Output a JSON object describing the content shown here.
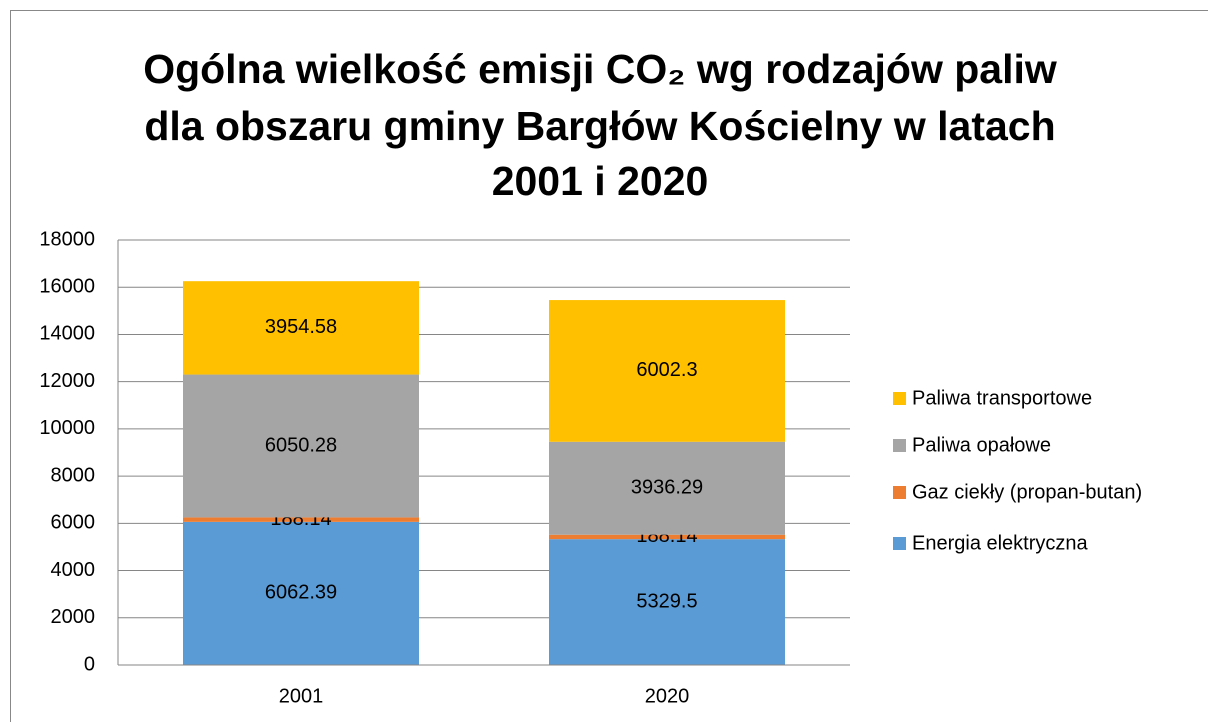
{
  "chart_data": {
    "type": "stacked_bar",
    "title": [
      "Ogólna wielkość emisji CO₂ wg rodzajów paliw",
      "dla obszaru gminy Bargłów Kościelny w latach",
      "2001 i 2020"
    ],
    "categories": [
      "2001",
      "2020"
    ],
    "series": [
      {
        "name": "Energia elektryczna",
        "color": "#5b9bd5",
        "values": [
          6062.39,
          5329.5
        ]
      },
      {
        "name": "Gaz ciekły (propan-butan)",
        "color": "#ed7d31",
        "values": [
          188.14,
          188.14
        ]
      },
      {
        "name": "Paliwa opałowe",
        "color": "#a5a5a5",
        "values": [
          6050.28,
          3936.29
        ]
      },
      {
        "name": "Paliwa transportowe",
        "color": "#ffc000",
        "values": [
          3954.58,
          6002.3
        ]
      }
    ],
    "ylim": [
      0,
      18000
    ],
    "yticks": [
      0,
      2000,
      4000,
      6000,
      8000,
      10000,
      12000,
      14000,
      16000,
      18000
    ],
    "grid": true,
    "legend": "right"
  }
}
